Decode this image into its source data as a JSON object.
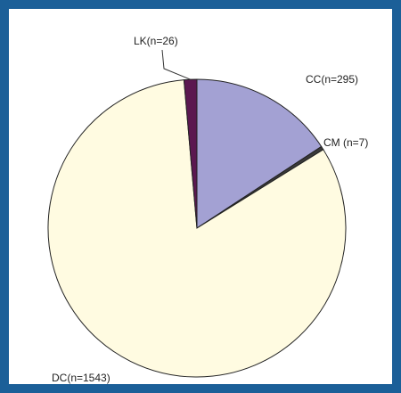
{
  "chart_data": {
    "type": "pie",
    "categories": [
      "CC(n=295)",
      "CM (n=7)",
      "DC(n=1543)",
      "LK(n=26)"
    ],
    "values": [
      295,
      7,
      1543,
      26
    ],
    "colors": [
      "#a3a1d3",
      "#3a3a3a",
      "#fffbe1",
      "#5b1850"
    ]
  }
}
